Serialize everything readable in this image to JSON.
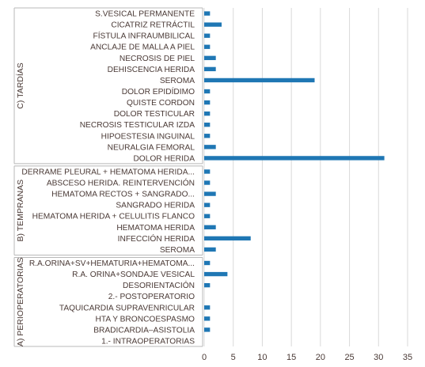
{
  "chart_data": {
    "type": "bar",
    "orientation": "horizontal",
    "xlim": [
      0,
      35
    ],
    "x_ticks": [
      0,
      5,
      10,
      15,
      20,
      25,
      30,
      35
    ],
    "grid": true,
    "bar_color": "#1f77b4",
    "groups": [
      {
        "label": "C) TARDÍAS",
        "categories": [
          "S.VESICAL PERMANENTE",
          "CICATRIZ RETRÁCTIL",
          "FÍSTULA INFRAUMBILICAL",
          "ANCLAJE DE MALLA A PIEL",
          "NECROSIS DE PIEL",
          "DEHISCENCIA HERIDA",
          "SEROMA",
          "DOLOR EPIDÍDIMO",
          "QUISTE CORDON",
          "DOLOR TESTICULAR",
          "NECROSIS TESTICULAR IZDA",
          "HIPOESTESIA INGUINAL",
          "NEURALGIA FEMORAL",
          "DOLOR HERIDA"
        ],
        "values": [
          1,
          3,
          1,
          1,
          2,
          2,
          19,
          1,
          1,
          1,
          1,
          1,
          2,
          31
        ]
      },
      {
        "label": "B) TEMPRANAS",
        "categories": [
          "DERRAME PLEURAL + HEMATOMA HERIDA...",
          "ABSCESO HERIDA. REINTERVENCIÓN",
          "HEMATOMA RECTOS + SANGRADO...",
          "SANGRADO HERIDA",
          "HEMATOMA HERIDA + CELULITIS FLANCO",
          "HEMATOMA HERIDA",
          "INFECCIÓN HERIDA",
          "SEROMA"
        ],
        "values": [
          1,
          1,
          2,
          1,
          1,
          2,
          8,
          2
        ]
      },
      {
        "label": "A) PERIOPERATORIAS",
        "categories": [
          "R.A.ORINA+SV+HEMATURIA+HEMATOMA...",
          "R.A. ORINA+SONDAJE VESICAL",
          "DESORIENTACIÓN",
          "2.- POSTOPERATORIO",
          "TAQUICARDIA SUPRAVENRICULAR",
          "HTA Y BRONCOESPASMO",
          "BRADICARDIA–ASISTOLIA",
          "1.- INTRAOPERATORIAS"
        ],
        "values": [
          1,
          4,
          1,
          0,
          1,
          1,
          1,
          0
        ]
      }
    ]
  }
}
